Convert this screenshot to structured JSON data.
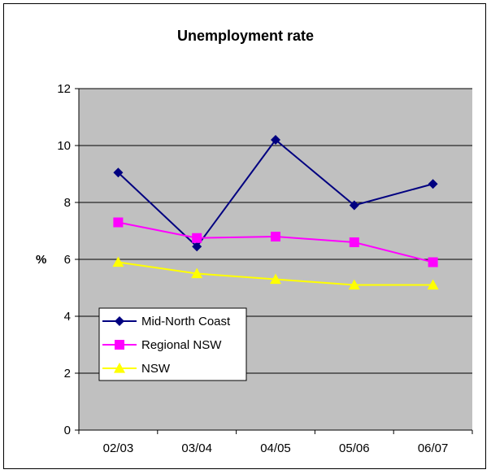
{
  "chart_data": {
    "type": "line",
    "title": "Unemployment rate",
    "xlabel": "",
    "ylabel": "%",
    "categories": [
      "02/03",
      "03/04",
      "04/05",
      "05/06",
      "06/07"
    ],
    "ylim": [
      0,
      12
    ],
    "yticks": [
      0,
      2,
      4,
      6,
      8,
      10,
      12
    ],
    "grid": true,
    "plot_background": "#c0c0c0",
    "legend_position": "bottom-left",
    "series": [
      {
        "name": "Mid-North Coast",
        "values": [
          9.05,
          6.45,
          10.2,
          7.9,
          8.65
        ],
        "color": "#000080",
        "marker": "diamond"
      },
      {
        "name": "Regional NSW",
        "values": [
          7.3,
          6.75,
          6.8,
          6.6,
          5.9
        ],
        "color": "#ff00ff",
        "marker": "square"
      },
      {
        "name": "NSW",
        "values": [
          5.9,
          5.5,
          5.3,
          5.1,
          5.1
        ],
        "color": "#ffff00",
        "marker": "triangle"
      }
    ]
  }
}
